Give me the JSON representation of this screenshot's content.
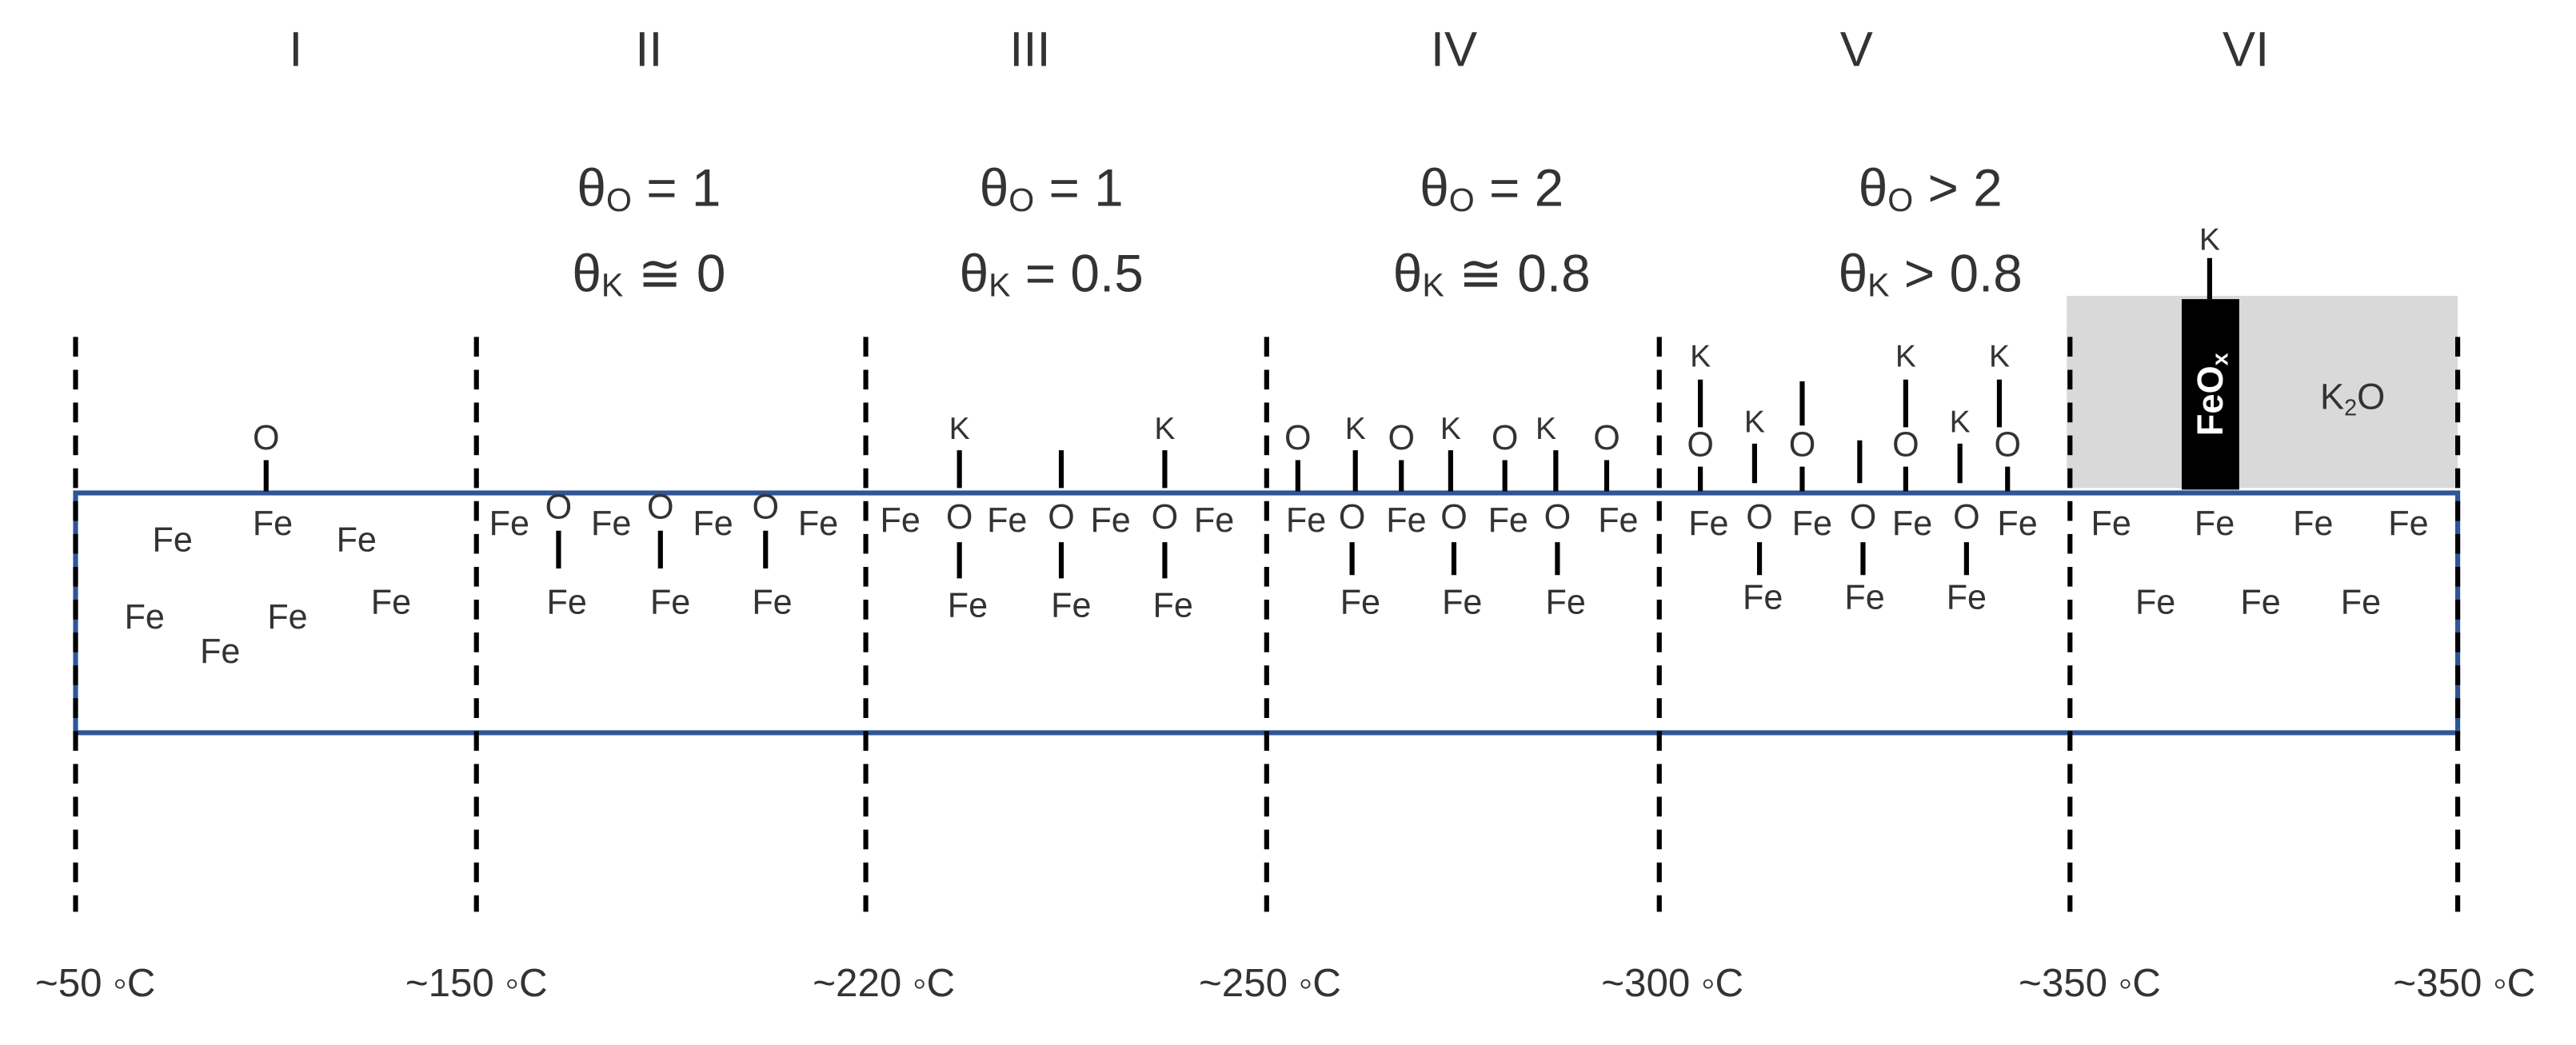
{
  "regions": [
    {
      "stage": "I",
      "atoms": [
        "O",
        "Fe",
        "Fe",
        "Fe",
        "Fe",
        "Fe",
        "Fe",
        "Fe"
      ]
    },
    {
      "stage": "II",
      "coverage": [
        {
          "symbol": "θ",
          "sub": "O",
          "rest": " = 1"
        },
        {
          "symbol": "θ",
          "sub": "K",
          "rest": " ≅ 0"
        }
      ],
      "atoms": [
        "Fe",
        "O",
        "Fe",
        "O",
        "Fe",
        "O",
        "Fe",
        "Fe",
        "Fe",
        "Fe"
      ]
    },
    {
      "stage": "III",
      "coverage": [
        {
          "symbol": "θ",
          "sub": "O",
          "rest": " = 1"
        },
        {
          "symbol": "θ",
          "sub": "K",
          "rest": " = 0.5"
        }
      ],
      "atoms": [
        "K",
        "K",
        "Fe",
        "O",
        "Fe",
        "O",
        "Fe",
        "O",
        "Fe",
        "Fe",
        "Fe",
        "Fe"
      ]
    },
    {
      "stage": "IV",
      "coverage": [
        {
          "symbol": "θ",
          "sub": "O",
          "rest": " = 2"
        },
        {
          "symbol": "θ",
          "sub": "K",
          "rest": " ≅ 0.8"
        }
      ],
      "atoms": [
        "O",
        "K",
        "O",
        "K",
        "O",
        "K",
        "O",
        "Fe",
        "O",
        "Fe",
        "O",
        "Fe",
        "O",
        "Fe",
        "Fe",
        "Fe",
        "Fe"
      ]
    },
    {
      "stage": "V",
      "coverage": [
        {
          "symbol": "θ",
          "sub": "O",
          "rest": " > 2"
        },
        {
          "symbol": "θ",
          "sub": "K",
          "rest": " > 0.8"
        }
      ],
      "atoms": [
        "K",
        "K",
        "K",
        "O",
        "K",
        "O",
        "O",
        "K",
        "O",
        "Fe",
        "O",
        "Fe",
        "O",
        "Fe",
        "O",
        "Fe",
        "Fe",
        "Fe",
        "Fe"
      ]
    },
    {
      "stage": "VI",
      "oxide": {
        "main": "FeO",
        "sub": "x"
      },
      "k2o": {
        "main": "K",
        "sub": "2",
        "tail": "O"
      },
      "atoms": [
        "K",
        "Fe",
        "Fe",
        "Fe",
        "Fe",
        "Fe",
        "Fe",
        "Fe"
      ]
    }
  ],
  "temperatures": [
    "~50 ◦C",
    "~150 ◦C",
    "~220 ◦C",
    "~250 ◦C",
    "~300 ◦C",
    "~350 ◦C",
    "~350 ◦C"
  ]
}
